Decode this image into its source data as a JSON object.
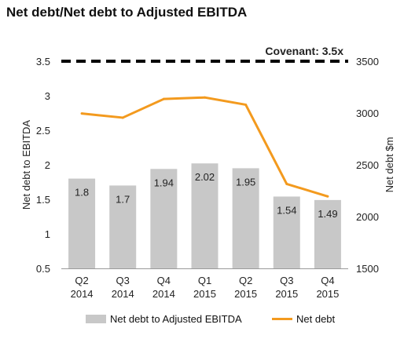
{
  "chart_data": {
    "type": "bar",
    "title": "Net debt/Net debt to Adjusted EBITDA",
    "categories": [
      "Q2\n2014",
      "Q3\n2014",
      "Q4\n2014",
      "Q1\n2015",
      "Q2\n2015",
      "Q3\n2015",
      "Q4\n2015"
    ],
    "series": [
      {
        "name": "Net debt to Adjusted EBITDA",
        "type": "bar",
        "axis": "left",
        "values": [
          1.8,
          1.7,
          1.94,
          2.02,
          1.95,
          1.54,
          1.49
        ],
        "labels": [
          "1.8",
          "1.7",
          "1.94",
          "2.02",
          "1.95",
          "1.54",
          "1.49"
        ],
        "color": "#c8c8c8"
      },
      {
        "name": "Net debt",
        "type": "line",
        "axis": "right",
        "values": [
          2995,
          2955,
          3135,
          3150,
          3080,
          2315,
          2195
        ],
        "color": "#f39a1e"
      }
    ],
    "y_left": {
      "label": "Net debt to EBITDA",
      "range": [
        0.5,
        3.5
      ],
      "ticks": [
        "0.5",
        "1",
        "1.5",
        "2",
        "2.5",
        "3",
        "3.5"
      ]
    },
    "y_right": {
      "label": "Net debt $m",
      "range": [
        1500,
        3500
      ],
      "ticks": [
        "1500",
        "2000",
        "2500",
        "3000",
        "3500"
      ]
    },
    "covenant": {
      "label": "Covenant: 3.5x",
      "value": 3.5
    },
    "grid": false,
    "legend_position": "bottom"
  }
}
